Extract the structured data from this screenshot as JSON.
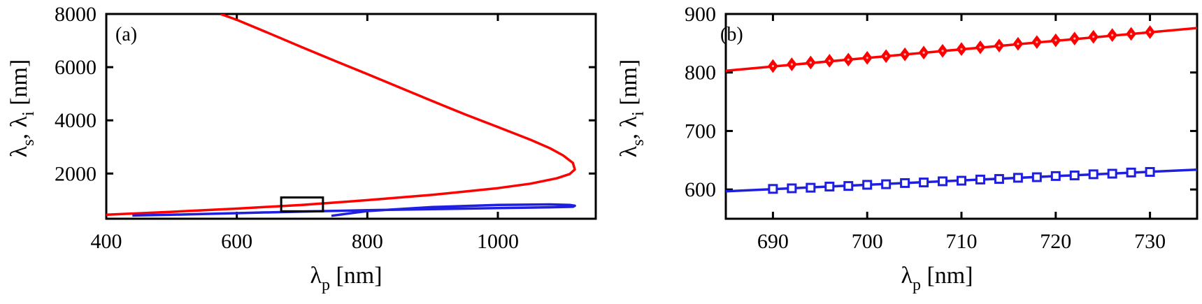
{
  "chart_data": [
    {
      "type": "line",
      "panel_label": "(a)",
      "xlabel": {
        "main": "λ",
        "sub": "p",
        "unit": " [nm]"
      },
      "ylabel": {
        "main1": "λ",
        "sub1": "s",
        "sep": ", ",
        "main2": "λ",
        "sub2": "i",
        "unit": " [nm]"
      },
      "xlim": [
        400,
        1150
      ],
      "ylim": [
        300,
        8000
      ],
      "xticks": [
        400,
        600,
        800,
        1000
      ],
      "yticks": [
        2000,
        4000,
        6000,
        8000
      ],
      "grid": false,
      "series": [
        {
          "color": "#ff0000",
          "x": [
            400,
            500,
            600,
            700,
            800,
            900,
            1000,
            1050,
            1090,
            1110,
            1118,
            1115,
            1100,
            1080,
            1050,
            1000,
            950,
            900,
            850,
            800,
            750,
            700,
            650,
            600,
            575
          ],
          "y": [
            450,
            560,
            680,
            820,
            1000,
            1200,
            1450,
            1620,
            1820,
            1980,
            2150,
            2400,
            2680,
            2950,
            3270,
            3750,
            4220,
            4720,
            5230,
            5740,
            6240,
            6750,
            7270,
            7780,
            8000
          ]
        },
        {
          "color": "#1f1fe0",
          "x": [
            440,
            500,
            600,
            700,
            800,
            900,
            1000,
            1080,
            1115,
            1118,
            1110,
            1080,
            1000,
            900,
            800,
            745
          ],
          "y": [
            420,
            450,
            510,
            570,
            620,
            660,
            700,
            730,
            750,
            790,
            820,
            840,
            820,
            740,
            590,
            410
          ]
        }
      ],
      "inset_box": {
        "x": [
          668,
          732
        ],
        "y": [
          580,
          1100
        ]
      }
    },
    {
      "type": "line",
      "panel_label": "(b)",
      "xlabel": {
        "main": "λ",
        "sub": "p",
        "unit": " [nm]"
      },
      "ylabel": {
        "main1": "λ",
        "sub1": "s",
        "sep": ", ",
        "main2": "λ",
        "sub2": "i",
        "unit": " [nm]"
      },
      "xlim": [
        685,
        735
      ],
      "ylim": [
        550,
        900
      ],
      "xticks": [
        690,
        700,
        710,
        720,
        730
      ],
      "yticks": [
        600,
        700,
        800,
        900
      ],
      "grid": false,
      "series": [
        {
          "color": "#ff0000",
          "line": {
            "x": [
              685,
              735
            ],
            "y": [
              803,
              876
            ]
          },
          "marker": "diamond",
          "x": [
            690,
            692,
            694,
            696,
            698,
            700,
            702,
            704,
            706,
            708,
            710,
            712,
            714,
            716,
            718,
            720,
            722,
            724,
            726,
            728,
            730
          ],
          "y": [
            811,
            814,
            817,
            820,
            822,
            825,
            828,
            831,
            834,
            837,
            840,
            843,
            846,
            849,
            852,
            855,
            858,
            861,
            864,
            866,
            869
          ]
        },
        {
          "color": "#1f1fe0",
          "line": {
            "x": [
              685,
              735
            ],
            "y": [
              597,
              634
            ]
          },
          "marker": "square",
          "x": [
            690,
            692,
            694,
            696,
            698,
            700,
            702,
            704,
            706,
            708,
            710,
            712,
            714,
            716,
            718,
            720,
            722,
            724,
            726,
            728,
            730
          ],
          "y": [
            601,
            602,
            603,
            605,
            606,
            608,
            609,
            611,
            612,
            614,
            615,
            617,
            618,
            620,
            621,
            623,
            624,
            626,
            627,
            629,
            630
          ]
        }
      ]
    }
  ]
}
